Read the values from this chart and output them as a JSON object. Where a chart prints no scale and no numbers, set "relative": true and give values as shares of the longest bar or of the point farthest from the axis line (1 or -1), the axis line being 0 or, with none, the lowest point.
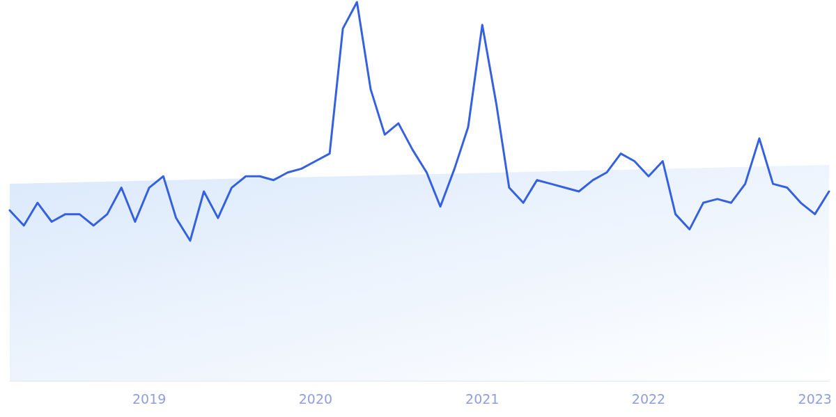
{
  "chart_data": {
    "type": "line",
    "relative": true,
    "line_style": "solid",
    "marker": "none",
    "xlim": [
      "2018-03",
      "2023-02"
    ],
    "xticks": [
      "2019",
      "2020",
      "2021",
      "2022",
      "2023"
    ],
    "series": [
      {
        "type": "area",
        "color": "#dbe9fb",
        "x": [
          "2018-03",
          "2023-02"
        ],
        "values": [
          0.52,
          0.57
        ]
      },
      {
        "type": "line",
        "color": "#3461e0",
        "x": [
          "2018-03",
          "2018-04",
          "2018-05",
          "2018-06",
          "2018-07",
          "2018-08",
          "2018-09",
          "2018-10",
          "2018-11",
          "2018-12",
          "2019-01",
          "2019-02",
          "2019-03",
          "2019-04",
          "2019-05",
          "2019-06",
          "2019-07",
          "2019-08",
          "2019-09",
          "2019-10",
          "2019-11",
          "2019-12",
          "2020-01",
          "2020-02",
          "2020-03",
          "2020-04",
          "2020-05",
          "2020-06",
          "2020-07",
          "2020-08",
          "2020-09",
          "2020-10",
          "2020-11",
          "2020-12",
          "2021-01",
          "2021-02",
          "2021-03",
          "2021-04",
          "2021-05",
          "2021-06",
          "2021-07",
          "2021-08",
          "2021-09",
          "2021-10",
          "2021-11",
          "2021-12",
          "2022-01",
          "2022-02",
          "2022-03",
          "2022-04",
          "2022-05",
          "2022-06",
          "2022-07",
          "2022-08",
          "2022-09",
          "2022-10",
          "2022-11",
          "2022-12",
          "2023-01",
          "2023-02"
        ],
        "values": [
          0.45,
          0.41,
          0.47,
          0.42,
          0.44,
          0.44,
          0.41,
          0.44,
          0.51,
          0.42,
          0.51,
          0.54,
          0.43,
          0.37,
          0.5,
          0.43,
          0.51,
          0.54,
          0.54,
          0.53,
          0.55,
          0.56,
          0.58,
          0.6,
          0.93,
          1,
          0.77,
          0.65,
          0.68,
          0.61,
          0.55,
          0.46,
          0.56,
          0.67,
          0.94,
          0.73,
          0.51,
          0.47,
          0.53,
          0.52,
          0.51,
          0.5,
          0.53,
          0.55,
          0.6,
          0.58,
          0.54,
          0.58,
          0.44,
          0.4,
          0.47,
          0.48,
          0.47,
          0.52,
          0.64,
          0.52,
          0.51,
          0.47,
          0.44,
          0.5
        ]
      }
    ]
  }
}
